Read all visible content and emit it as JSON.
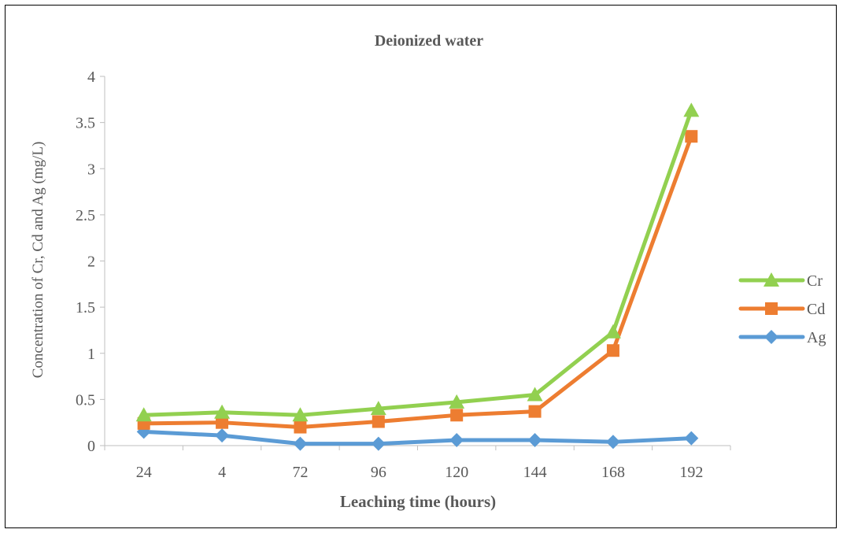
{
  "chart_data": {
    "type": "line",
    "title": "Deionized water",
    "xlabel": "Leaching time (hours)",
    "ylabel": "Concentration of Cr, Cd and Ag (mg/L)",
    "categories": [
      "24",
      "4",
      "72",
      "96",
      "120",
      "144",
      "168",
      "192"
    ],
    "ylim": [
      0,
      4
    ],
    "yticks": [
      "0",
      "0.5",
      "1",
      "1.5",
      "2",
      "2.5",
      "3",
      "3.5",
      "4"
    ],
    "grid": false,
    "legend_position": "right",
    "series": [
      {
        "name": "Cr",
        "marker": "triangle",
        "color": "#92D050",
        "values": [
          0.33,
          0.36,
          0.33,
          0.4,
          0.47,
          0.55,
          1.23,
          3.63
        ]
      },
      {
        "name": "Cd",
        "marker": "square",
        "color": "#ED7D31",
        "values": [
          0.24,
          0.25,
          0.2,
          0.26,
          0.33,
          0.37,
          1.03,
          3.35
        ]
      },
      {
        "name": "Ag",
        "marker": "diamond",
        "color": "#5B9BD5",
        "values": [
          0.15,
          0.11,
          0.02,
          0.02,
          0.06,
          0.06,
          0.04,
          0.08
        ]
      }
    ]
  }
}
